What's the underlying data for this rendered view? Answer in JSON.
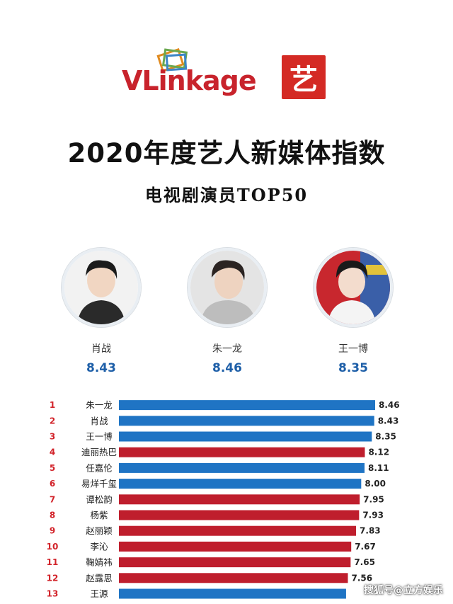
{
  "brand": {
    "wordmark_vl": "VL",
    "wordmark_rest": "inkage",
    "partner_glyph": "艺"
  },
  "title": "2020年度艺人新媒体指数",
  "subtitle": "电视剧演员TOP50",
  "top3": [
    {
      "name": "肖战",
      "score": "8.43"
    },
    {
      "name": "朱一龙",
      "score": "8.46"
    },
    {
      "name": "王一博",
      "score": "8.35"
    }
  ],
  "colors": {
    "blue": "#1f74c4",
    "red": "#bf1e2d",
    "rank": "#d2232a"
  },
  "chart_data": {
    "type": "bar",
    "orientation": "horizontal",
    "categories": [
      "朱一龙",
      "肖战",
      "王一博",
      "迪丽热巴",
      "任嘉伦",
      "易烊千玺",
      "谭松韵",
      "杨紫",
      "赵丽颖",
      "李沁",
      "鞠婧祎",
      "赵露思",
      "王源"
    ],
    "ranks": [
      "1",
      "2",
      "3",
      "4",
      "5",
      "6",
      "7",
      "8",
      "9",
      "10",
      "11",
      "12",
      "13"
    ],
    "values": [
      8.46,
      8.43,
      8.35,
      8.12,
      8.11,
      8.0,
      7.95,
      7.93,
      7.83,
      7.67,
      7.65,
      7.56,
      7.5
    ],
    "labels": [
      "8.46",
      "8.43",
      "8.35",
      "8.12",
      "8.11",
      "8.00",
      "7.95",
      "7.93",
      "7.83",
      "7.67",
      "7.65",
      "7.56",
      ""
    ],
    "bar_colors": [
      "blue",
      "blue",
      "blue",
      "red",
      "blue",
      "blue",
      "red",
      "red",
      "red",
      "red",
      "red",
      "red",
      "blue"
    ],
    "xlim": [
      0,
      8.46
    ]
  },
  "watermark": "搜狐号@立方娱乐"
}
